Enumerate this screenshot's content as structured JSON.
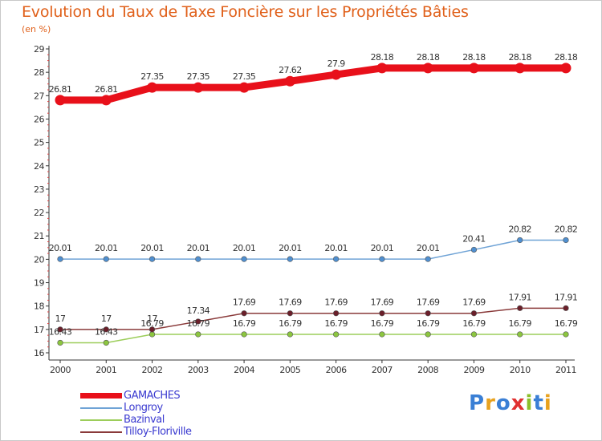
{
  "title": "Evolution du Taux de Taxe Foncière sur les Propriétés Bâties",
  "subtitle": "(en %)",
  "brand": {
    "text": "Proxiti",
    "letter_colors": [
      "#3a7fd5",
      "#e8a21f",
      "#3a7fd5",
      "#e03030",
      "#8cbf2a",
      "#3a7fd5",
      "#e8a21f"
    ]
  },
  "chart_data": {
    "type": "line",
    "title": "Evolution du Taux de Taxe Foncière sur les Propriétés Bâties",
    "ylabel": "(en %)",
    "x": [
      "2000",
      "2001",
      "2002",
      "2003",
      "2004",
      "2005",
      "2006",
      "2007",
      "2008",
      "2009",
      "2010",
      "2011"
    ],
    "ylim": [
      16,
      29
    ],
    "yticks": [
      "16",
      "17",
      "18",
      "19",
      "20",
      "21",
      "22",
      "23",
      "24",
      "25",
      "26",
      "27",
      "28",
      "29"
    ],
    "legend_position": "bottom-left",
    "series": [
      {
        "name": "GAMACHES",
        "color": "#e8101a",
        "marker_color": "#e8101a",
        "thick": true,
        "values": [
          26.81,
          26.81,
          27.35,
          27.35,
          27.35,
          27.62,
          27.9,
          28.18,
          28.18,
          28.18,
          28.18,
          28.18
        ],
        "labels": [
          "26.81",
          "26.81",
          "27.35",
          "27.35",
          "27.35",
          "27.62",
          "27.9",
          "28.18",
          "28.18",
          "28.18",
          "28.18",
          "28.18"
        ]
      },
      {
        "name": "Longroy",
        "color": "#6fa3d6",
        "marker_color": "#4f8fd0",
        "values": [
          20.01,
          20.01,
          20.01,
          20.01,
          20.01,
          20.01,
          20.01,
          20.01,
          20.01,
          20.41,
          20.82,
          20.82
        ],
        "labels": [
          "20.01",
          "20.01",
          "20.01",
          "20.01",
          "20.01",
          "20.01",
          "20.01",
          "20.01",
          "20.01",
          "20.41",
          "20.82",
          "20.82"
        ]
      },
      {
        "name": "Bazinval",
        "color": "#9ccd5a",
        "marker_color": "#8cc63f",
        "values": [
          16.43,
          16.43,
          16.79,
          16.79,
          16.79,
          16.79,
          16.79,
          16.79,
          16.79,
          16.79,
          16.79,
          16.79
        ],
        "labels": [
          "16.43",
          "16.43",
          "16.79",
          "16.79",
          "16.79",
          "16.79",
          "16.79",
          "16.79",
          "16.79",
          "16.79",
          "16.79",
          "16.79"
        ]
      },
      {
        "name": "Tilloy-Floriville",
        "color": "#8a3a3a",
        "marker_color": "#6b1f2a",
        "values": [
          17,
          17,
          17,
          17.34,
          17.69,
          17.69,
          17.69,
          17.69,
          17.69,
          17.69,
          17.91,
          17.91
        ],
        "labels": [
          "17",
          "17",
          "17",
          "17.34",
          "17.69",
          "17.69",
          "17.69",
          "17.69",
          "17.69",
          "17.69",
          "17.91",
          "17.91"
        ]
      }
    ]
  }
}
